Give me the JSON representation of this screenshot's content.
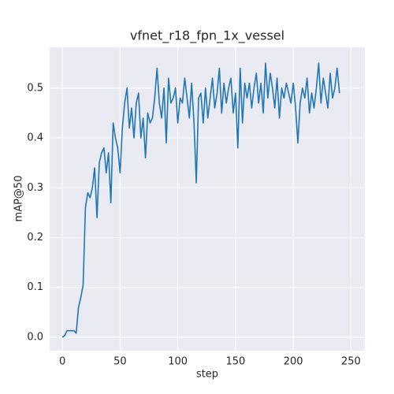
{
  "chart_data": {
    "type": "line",
    "title": "vfnet_r18_fpn_1x_vessel",
    "x_label": "step",
    "y_label": "mAP@50",
    "x": [
      0,
      2,
      4,
      6,
      8,
      10,
      12,
      14,
      16,
      18,
      20,
      22,
      24,
      26,
      28,
      30,
      32,
      34,
      36,
      38,
      40,
      42,
      44,
      46,
      48,
      50,
      52,
      54,
      56,
      58,
      60,
      62,
      64,
      66,
      68,
      70,
      72,
      74,
      76,
      78,
      80,
      82,
      84,
      86,
      88,
      90,
      92,
      94,
      96,
      98,
      100,
      102,
      104,
      106,
      108,
      110,
      112,
      114,
      116,
      118,
      120,
      122,
      124,
      126,
      128,
      130,
      132,
      134,
      136,
      138,
      140,
      142,
      144,
      146,
      148,
      150,
      152,
      154,
      156,
      158,
      160,
      162,
      164,
      166,
      168,
      170,
      172,
      174,
      176,
      178,
      180,
      182,
      184,
      186,
      188,
      190,
      192,
      194,
      196,
      198,
      200,
      202,
      204,
      206,
      208,
      210,
      212,
      214,
      216,
      218,
      220,
      222,
      224,
      226,
      228,
      230,
      232,
      234,
      236,
      238,
      240
    ],
    "series": [
      {
        "name": "mAP@50",
        "color": "#1f77b4",
        "values": [
          0.0,
          0.003,
          0.013,
          0.013,
          0.013,
          0.013,
          0.008,
          0.06,
          0.08,
          0.105,
          0.26,
          0.29,
          0.28,
          0.3,
          0.34,
          0.24,
          0.35,
          0.37,
          0.38,
          0.33,
          0.37,
          0.27,
          0.43,
          0.4,
          0.38,
          0.33,
          0.42,
          0.47,
          0.5,
          0.42,
          0.46,
          0.4,
          0.47,
          0.49,
          0.4,
          0.44,
          0.36,
          0.45,
          0.43,
          0.44,
          0.48,
          0.54,
          0.47,
          0.44,
          0.5,
          0.39,
          0.52,
          0.47,
          0.48,
          0.5,
          0.43,
          0.48,
          0.47,
          0.52,
          0.48,
          0.44,
          0.51,
          0.43,
          0.31,
          0.48,
          0.49,
          0.43,
          0.5,
          0.44,
          0.48,
          0.52,
          0.46,
          0.49,
          0.54,
          0.45,
          0.51,
          0.47,
          0.5,
          0.52,
          0.45,
          0.49,
          0.38,
          0.54,
          0.43,
          0.51,
          0.48,
          0.51,
          0.46,
          0.5,
          0.53,
          0.47,
          0.51,
          0.45,
          0.55,
          0.48,
          0.53,
          0.5,
          0.46,
          0.52,
          0.44,
          0.5,
          0.48,
          0.51,
          0.49,
          0.47,
          0.51,
          0.46,
          0.39,
          0.47,
          0.5,
          0.48,
          0.52,
          0.45,
          0.49,
          0.46,
          0.5,
          0.55,
          0.47,
          0.52,
          0.49,
          0.46,
          0.53,
          0.48,
          0.5,
          0.54,
          0.49
        ]
      }
    ],
    "xlim": [
      -11,
      262
    ],
    "ylim": [
      -0.027,
      0.582
    ],
    "xticks": [
      0,
      50,
      100,
      150,
      200,
      250
    ],
    "yticks": [
      {
        "value": 0,
        "label": "0.0"
      },
      0.1,
      0.2,
      0.3,
      0.4,
      0.5
    ],
    "grid": true,
    "background": "#eaeaf2"
  }
}
